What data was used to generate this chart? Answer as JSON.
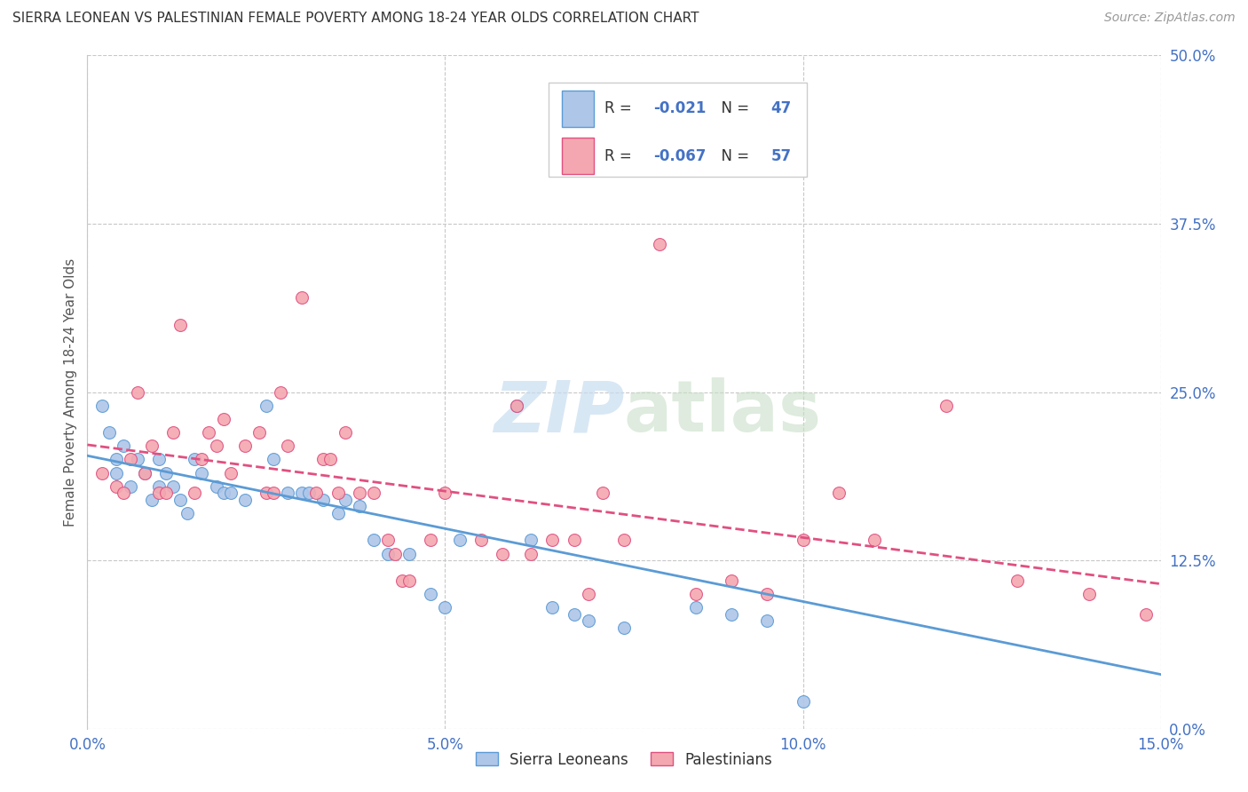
{
  "title": "SIERRA LEONEAN VS PALESTINIAN FEMALE POVERTY AMONG 18-24 YEAR OLDS CORRELATION CHART",
  "source": "Source: ZipAtlas.com",
  "xlabel_ticks": [
    "0.0%",
    "5.0%",
    "10.0%",
    "15.0%"
  ],
  "xlabel_tick_vals": [
    0.0,
    0.05,
    0.1,
    0.15
  ],
  "ylabel": "Female Poverty Among 18-24 Year Olds",
  "ylabel_ticks": [
    "0.0%",
    "12.5%",
    "25.0%",
    "37.5%",
    "50.0%"
  ],
  "ylabel_tick_vals": [
    0.0,
    0.125,
    0.25,
    0.375,
    0.5
  ],
  "xlim": [
    0.0,
    0.15
  ],
  "ylim": [
    0.0,
    0.5
  ],
  "sl_R": -0.021,
  "sl_N": 47,
  "pal_R": -0.067,
  "pal_N": 57,
  "sl_color": "#aec6e8",
  "pal_color": "#f4a7b0",
  "sl_line_color": "#5b9bd5",
  "pal_line_color": "#e05080",
  "sl_x": [
    0.002,
    0.003,
    0.004,
    0.004,
    0.005,
    0.006,
    0.007,
    0.008,
    0.009,
    0.01,
    0.01,
    0.011,
    0.012,
    0.013,
    0.014,
    0.015,
    0.016,
    0.018,
    0.019,
    0.02,
    0.022,
    0.025,
    0.026,
    0.028,
    0.03,
    0.031,
    0.033,
    0.035,
    0.036,
    0.038,
    0.04,
    0.042,
    0.045,
    0.048,
    0.05,
    0.052,
    0.06,
    0.062,
    0.065,
    0.068,
    0.07,
    0.075,
    0.08,
    0.085,
    0.09,
    0.095,
    0.1
  ],
  "sl_y": [
    0.24,
    0.22,
    0.2,
    0.19,
    0.21,
    0.18,
    0.2,
    0.19,
    0.17,
    0.2,
    0.18,
    0.19,
    0.18,
    0.17,
    0.16,
    0.2,
    0.19,
    0.18,
    0.175,
    0.175,
    0.17,
    0.24,
    0.2,
    0.175,
    0.175,
    0.175,
    0.17,
    0.16,
    0.17,
    0.165,
    0.14,
    0.13,
    0.13,
    0.1,
    0.09,
    0.14,
    0.24,
    0.14,
    0.09,
    0.085,
    0.08,
    0.075,
    0.44,
    0.09,
    0.085,
    0.08,
    0.02
  ],
  "pal_x": [
    0.002,
    0.004,
    0.005,
    0.006,
    0.007,
    0.008,
    0.009,
    0.01,
    0.011,
    0.012,
    0.013,
    0.015,
    0.016,
    0.017,
    0.018,
    0.019,
    0.02,
    0.022,
    0.024,
    0.025,
    0.026,
    0.027,
    0.028,
    0.03,
    0.032,
    0.033,
    0.034,
    0.035,
    0.036,
    0.038,
    0.04,
    0.042,
    0.043,
    0.044,
    0.045,
    0.048,
    0.05,
    0.055,
    0.058,
    0.06,
    0.062,
    0.065,
    0.068,
    0.07,
    0.072,
    0.075,
    0.08,
    0.085,
    0.09,
    0.095,
    0.1,
    0.105,
    0.11,
    0.12,
    0.13,
    0.14,
    0.148
  ],
  "pal_y": [
    0.19,
    0.18,
    0.175,
    0.2,
    0.25,
    0.19,
    0.21,
    0.175,
    0.175,
    0.22,
    0.3,
    0.175,
    0.2,
    0.22,
    0.21,
    0.23,
    0.19,
    0.21,
    0.22,
    0.175,
    0.175,
    0.25,
    0.21,
    0.32,
    0.175,
    0.2,
    0.2,
    0.175,
    0.22,
    0.175,
    0.175,
    0.14,
    0.13,
    0.11,
    0.11,
    0.14,
    0.175,
    0.14,
    0.13,
    0.24,
    0.13,
    0.14,
    0.14,
    0.1,
    0.175,
    0.14,
    0.36,
    0.1,
    0.11,
    0.1,
    0.14,
    0.175,
    0.14,
    0.24,
    0.11,
    0.1,
    0.085
  ]
}
